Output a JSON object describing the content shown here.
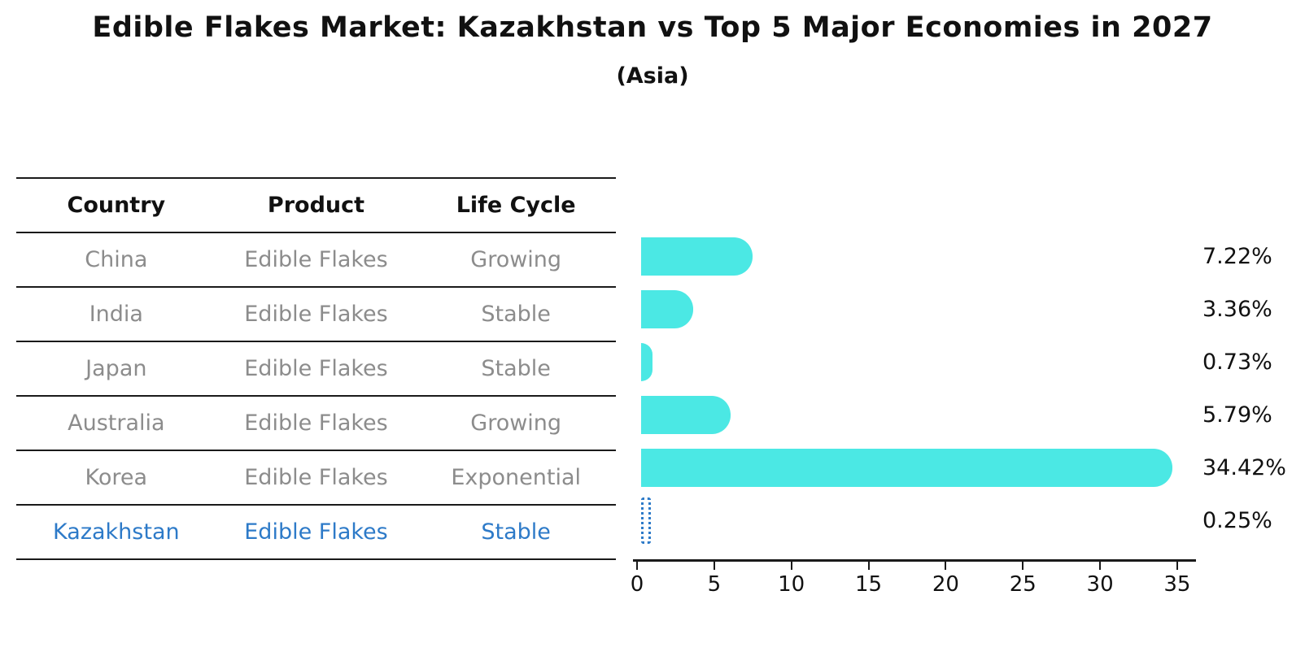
{
  "title": "Edible Flakes Market: Kazakhstan vs Top 5 Major Economies in 2027",
  "subtitle": "(Asia)",
  "table": {
    "headers": [
      "Country",
      "Product",
      "Life Cycle"
    ],
    "rows": [
      {
        "country": "China",
        "product": "Edible Flakes",
        "life_cycle": "Growing",
        "highlight": false
      },
      {
        "country": "India",
        "product": "Edible Flakes",
        "life_cycle": "Stable",
        "highlight": false
      },
      {
        "country": "Japan",
        "product": "Edible Flakes",
        "life_cycle": "Stable",
        "highlight": false
      },
      {
        "country": "Australia",
        "product": "Edible Flakes",
        "life_cycle": "Growing",
        "highlight": false
      },
      {
        "country": "Korea",
        "product": "Edible Flakes",
        "life_cycle": "Exponential",
        "highlight": false
      },
      {
        "country": "Kazakhstan",
        "product": "Edible Flakes",
        "life_cycle": "Stable",
        "highlight": true
      }
    ]
  },
  "chart_data": {
    "type": "bar",
    "orientation": "horizontal",
    "title": "Edible Flakes Market: Kazakhstan vs Top 5 Major Economies in 2027",
    "subtitle": "(Asia)",
    "categories": [
      "China",
      "India",
      "Japan",
      "Australia",
      "Korea",
      "Kazakhstan"
    ],
    "values": [
      7.22,
      3.36,
      0.73,
      5.79,
      34.42,
      0.25
    ],
    "value_labels": [
      "7.22%",
      "3.36%",
      "0.73%",
      "5.79%",
      "34.42%",
      "0.25%"
    ],
    "xlabel": "",
    "ylabel": "",
    "xlim": [
      0,
      35
    ],
    "xticks": [
      0,
      5,
      10,
      15,
      20,
      25,
      30,
      35
    ],
    "grid": false,
    "legend": false,
    "highlight_index": 5,
    "bar_color": "#4be8e4",
    "highlight_color": "#2d7ac8"
  }
}
